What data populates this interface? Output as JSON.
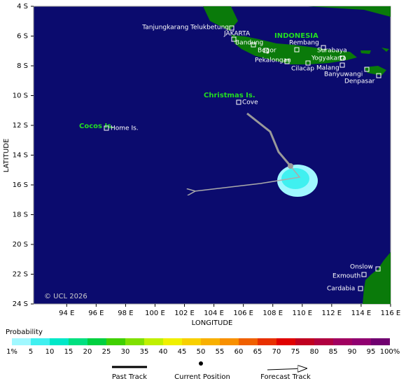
{
  "map": {
    "lon_ticks": [
      "94 E",
      "96 E",
      "98 E",
      "100 E",
      "102 E",
      "104 E",
      "106 E",
      "108 E",
      "110 E",
      "112 E",
      "114 E",
      "116 E"
    ],
    "lat_ticks": [
      "4 S",
      "6 S",
      "8 S",
      "10 S",
      "12 S",
      "14 S",
      "16 S",
      "18 S",
      "20 S",
      "22 S",
      "24 S"
    ],
    "x_label": "LONGITUDE",
    "y_label": "LATITUDE",
    "copyright": "© UCL 2026",
    "region_labels": [
      "INDONESIA",
      "Christmas Is.",
      "Cocos Is."
    ],
    "places": [
      "Tanjungkarang Telukbetung",
      "JAKARTA",
      "Bandung",
      "Bogor",
      "Pekalongan",
      "Rembang",
      "Surabaya",
      "Yogyakarta",
      "Cilacap",
      "Malang",
      "Banyuwangi",
      "Denpasar",
      "Cove",
      "Home Is.",
      "Onslow",
      "Exmouth",
      "Cardabia"
    ]
  },
  "colorbar": {
    "title": "Probability",
    "labels": [
      "1%",
      "5",
      "10",
      "15",
      "20",
      "25",
      "30",
      "35",
      "40",
      "45",
      "50",
      "55",
      "60",
      "65",
      "70",
      "75",
      "80",
      "85",
      "90",
      "95",
      "100%"
    ],
    "colors": [
      "#a0f8ff",
      "#40f0f0",
      "#00e8c8",
      "#00e080",
      "#00d040",
      "#40d000",
      "#80e000",
      "#c0f000",
      "#f0f000",
      "#f8d000",
      "#f8b000",
      "#f89000",
      "#f06000",
      "#e83000",
      "#e00000",
      "#c00020",
      "#b00040",
      "#a00060",
      "#900070",
      "#700070"
    ]
  },
  "legend": [
    "Past Track",
    "Current Position",
    "Forecast Track"
  ]
}
